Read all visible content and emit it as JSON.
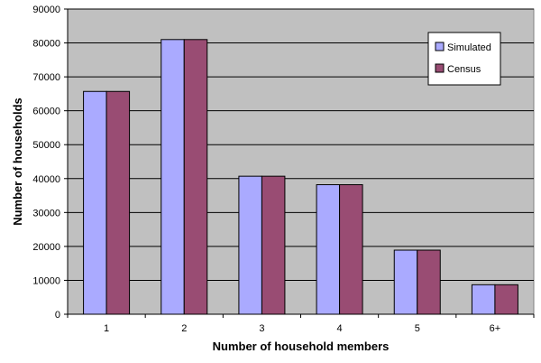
{
  "chart_data": {
    "type": "bar",
    "title": "",
    "xlabel": "Number of household members",
    "ylabel": "Number of households",
    "categories": [
      "1",
      "2",
      "3",
      "4",
      "5",
      "6+"
    ],
    "series": [
      {
        "name": "Simulated",
        "color": "#aaaaff",
        "values": [
          65700,
          81000,
          40700,
          38200,
          18900,
          8700
        ]
      },
      {
        "name": "Census",
        "color": "#994c73",
        "values": [
          65700,
          81000,
          40700,
          38200,
          18900,
          8700
        ]
      }
    ],
    "ylim": [
      0,
      90000
    ],
    "yticks": [
      "0",
      "10000",
      "20000",
      "30000",
      "40000",
      "50000",
      "60000",
      "70000",
      "80000",
      "90000"
    ],
    "grid": true,
    "legend_position": "top-right",
    "plot_background": "#c0c0c0"
  }
}
